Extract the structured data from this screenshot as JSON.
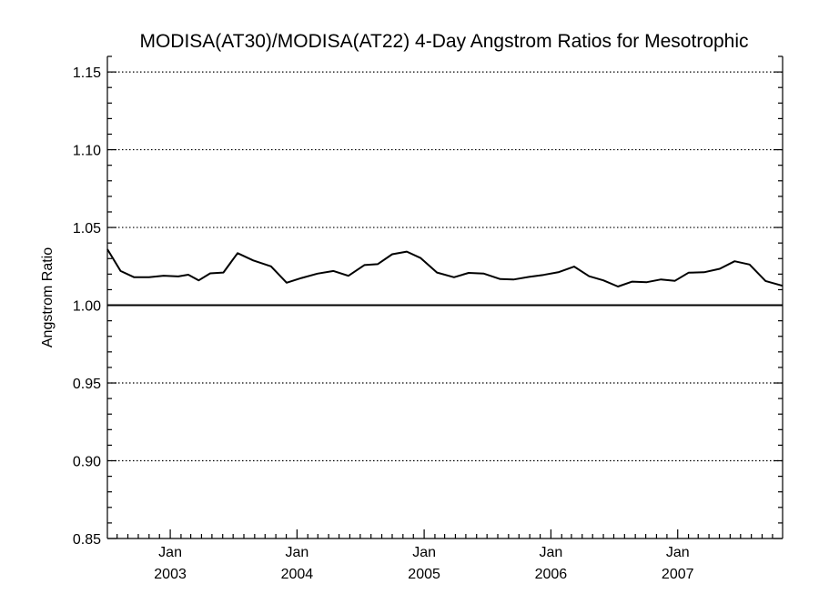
{
  "chart_data": {
    "type": "line",
    "title": "MODISA(AT30)/MODISA(AT22) 4-Day Angstrom Ratios for Mesotrophic",
    "ylabel": "Angstrom Ratio",
    "xlabel": "",
    "ylim": [
      0.85,
      1.16
    ],
    "y_ticks": [
      "0.85",
      "0.90",
      "0.95",
      "1.00",
      "1.05",
      "1.10",
      "1.15"
    ],
    "y_tick_values": [
      0.85,
      0.9,
      0.95,
      1.0,
      1.05,
      1.1,
      1.15
    ],
    "xlim": [
      "2002-07-04",
      "2007-10-30"
    ],
    "x_ticks": [
      {
        "month": "Jan",
        "year": "2003",
        "date": "2003-01-01"
      },
      {
        "month": "Jan",
        "year": "2004",
        "date": "2004-01-01"
      },
      {
        "month": "Jan",
        "year": "2005",
        "date": "2005-01-01"
      },
      {
        "month": "Jan",
        "year": "2006",
        "date": "2006-01-01"
      },
      {
        "month": "Jan",
        "year": "2007",
        "date": "2007-01-01"
      }
    ],
    "grid": "dotted horizontal",
    "reference_line": 1.0,
    "series": [
      {
        "x": [
          "2002-07-04",
          "2002-08-11",
          "2002-09-19",
          "2002-11-01",
          "2002-12-13",
          "2003-01-24",
          "2003-02-22",
          "2003-03-24",
          "2003-04-26",
          "2003-06-03",
          "2003-07-14",
          "2003-08-28",
          "2003-10-18",
          "2003-12-02",
          "2004-01-14",
          "2004-02-29",
          "2004-04-15",
          "2004-05-28",
          "2004-07-13",
          "2004-08-20",
          "2004-10-01",
          "2004-11-12",
          "2004-12-22",
          "2005-02-07",
          "2005-03-28",
          "2005-05-09",
          "2005-06-22",
          "2005-08-08",
          "2005-09-15",
          "2005-10-30",
          "2005-12-11",
          "2006-01-24",
          "2006-03-09",
          "2006-04-21",
          "2006-06-01",
          "2006-07-13",
          "2006-08-23",
          "2006-10-04",
          "2006-11-14",
          "2006-12-24",
          "2007-02-01",
          "2007-03-18",
          "2007-05-02",
          "2007-06-14",
          "2007-07-27",
          "2007-09-11",
          "2007-10-30"
        ],
        "y": [
          1.036,
          1.022,
          1.018,
          1.018,
          1.019,
          1.0185,
          1.0196,
          1.016,
          1.0205,
          1.021,
          1.0335,
          1.0288,
          1.025,
          1.0145,
          1.0175,
          1.0203,
          1.022,
          1.0189,
          1.0258,
          1.0264,
          1.0328,
          1.0345,
          1.0303,
          1.021,
          1.018,
          1.0208,
          1.0203,
          1.0168,
          1.0165,
          1.0182,
          1.0195,
          1.0213,
          1.0248,
          1.0186,
          1.016,
          1.012,
          1.0152,
          1.0148,
          1.0166,
          1.0157,
          1.0209,
          1.0212,
          1.0234,
          1.0283,
          1.0262,
          1.0156,
          1.0125
        ]
      }
    ]
  }
}
